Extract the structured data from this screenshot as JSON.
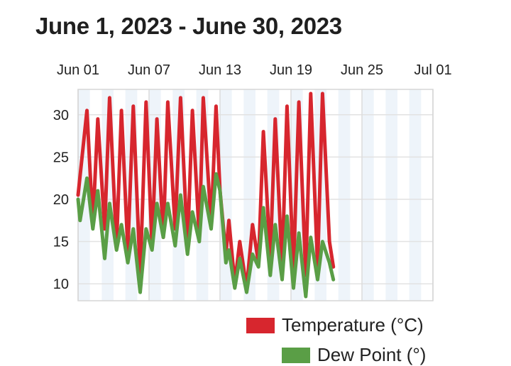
{
  "chart_data": {
    "type": "line",
    "title": "June 1, 2023 - June 30, 2023",
    "x_tick_labels": [
      "Jun 01",
      "Jun 07",
      "Jun 13",
      "Jun 19",
      "Jun 25",
      "Jul 01"
    ],
    "x_range": [
      "2023-06-01",
      "2023-07-01"
    ],
    "ylim": [
      8,
      33
    ],
    "y_ticks": [
      10,
      15,
      20,
      25,
      30
    ],
    "grid": true,
    "legend_position": "bottom-right",
    "series": [
      {
        "name": "Temperature (°C)",
        "color": "#d7262e",
        "points": [
          [
            "2023-06-01",
            20.5
          ],
          [
            "2023-06-01T18:00",
            30.5
          ],
          [
            "2023-06-02T06:00",
            17.0
          ],
          [
            "2023-06-02T16:00",
            29.5
          ],
          [
            "2023-06-03T06:00",
            16.5
          ],
          [
            "2023-06-03T16:00",
            32.0
          ],
          [
            "2023-06-04T06:00",
            14.5
          ],
          [
            "2023-06-04T16:00",
            30.5
          ],
          [
            "2023-06-05T05:00",
            14.0
          ],
          [
            "2023-06-05T16:00",
            31.0
          ],
          [
            "2023-06-06T06:00",
            11.0
          ],
          [
            "2023-06-06T18:00",
            31.5
          ],
          [
            "2023-06-07T06:00",
            14.5
          ],
          [
            "2023-06-07T16:00",
            29.5
          ],
          [
            "2023-06-08T05:00",
            15.5
          ],
          [
            "2023-06-08T14:00",
            31.5
          ],
          [
            "2023-06-09T05:00",
            16.5
          ],
          [
            "2023-06-09T16:00",
            32.0
          ],
          [
            "2023-06-10T06:00",
            14.5
          ],
          [
            "2023-06-10T16:00",
            30.5
          ],
          [
            "2023-06-11T06:00",
            15.5
          ],
          [
            "2023-06-11T14:00",
            32.0
          ],
          [
            "2023-06-12T06:00",
            17.0
          ],
          [
            "2023-06-12T16:00",
            31.0
          ],
          [
            "2023-06-13T00:00",
            21.0
          ],
          [
            "2023-06-13T12:00",
            13.5
          ],
          [
            "2023-06-13T18:00",
            17.5
          ],
          [
            "2023-06-14T06:00",
            10.0
          ],
          [
            "2023-06-14T16:00",
            15.0
          ],
          [
            "2023-06-15T06:00",
            9.5
          ],
          [
            "2023-06-15T18:00",
            17.0
          ],
          [
            "2023-06-16T06:00",
            12.5
          ],
          [
            "2023-06-16T16:00",
            28.0
          ],
          [
            "2023-06-17T06:00",
            13.0
          ],
          [
            "2023-06-17T16:00",
            29.5
          ],
          [
            "2023-06-18T06:00",
            12.0
          ],
          [
            "2023-06-18T16:00",
            31.0
          ],
          [
            "2023-06-19T05:00",
            11.5
          ],
          [
            "2023-06-19T16:00",
            31.5
          ],
          [
            "2023-06-20T06:00",
            11.0
          ],
          [
            "2023-06-20T16:00",
            32.5
          ],
          [
            "2023-06-21T06:00",
            12.0
          ],
          [
            "2023-06-21T16:00",
            32.5
          ],
          [
            "2023-06-22T06:00",
            15.0
          ],
          [
            "2023-06-22T14:00",
            12.0
          ]
        ]
      },
      {
        "name": "Dew Point (°)",
        "color": "#5a9e46",
        "points": [
          [
            "2023-06-01",
            20.0
          ],
          [
            "2023-06-01T04:00",
            17.5
          ],
          [
            "2023-06-01T18:00",
            22.5
          ],
          [
            "2023-06-02T06:00",
            16.5
          ],
          [
            "2023-06-02T16:00",
            21.0
          ],
          [
            "2023-06-03T06:00",
            13.0
          ],
          [
            "2023-06-03T16:00",
            19.5
          ],
          [
            "2023-06-04T06:00",
            14.0
          ],
          [
            "2023-06-04T16:00",
            17.0
          ],
          [
            "2023-06-05T05:00",
            12.5
          ],
          [
            "2023-06-05T16:00",
            16.5
          ],
          [
            "2023-06-06T06:00",
            9.0
          ],
          [
            "2023-06-06T18:00",
            16.5
          ],
          [
            "2023-06-07T06:00",
            14.0
          ],
          [
            "2023-06-07T16:00",
            19.5
          ],
          [
            "2023-06-08T05:00",
            15.5
          ],
          [
            "2023-06-08T14:00",
            19.5
          ],
          [
            "2023-06-09T05:00",
            14.5
          ],
          [
            "2023-06-09T16:00",
            20.5
          ],
          [
            "2023-06-10T06:00",
            13.5
          ],
          [
            "2023-06-10T16:00",
            18.5
          ],
          [
            "2023-06-11T06:00",
            15.0
          ],
          [
            "2023-06-11T14:00",
            21.5
          ],
          [
            "2023-06-12T06:00",
            16.5
          ],
          [
            "2023-06-12T16:00",
            23.0
          ],
          [
            "2023-06-13T00:00",
            21.0
          ],
          [
            "2023-06-13T12:00",
            12.5
          ],
          [
            "2023-06-13T18:00",
            14.0
          ],
          [
            "2023-06-14T06:00",
            9.5
          ],
          [
            "2023-06-14T16:00",
            13.0
          ],
          [
            "2023-06-15T06:00",
            9.0
          ],
          [
            "2023-06-15T18:00",
            13.5
          ],
          [
            "2023-06-16T06:00",
            12.0
          ],
          [
            "2023-06-16T16:00",
            19.0
          ],
          [
            "2023-06-17T06:00",
            11.0
          ],
          [
            "2023-06-17T16:00",
            17.0
          ],
          [
            "2023-06-18T06:00",
            10.5
          ],
          [
            "2023-06-18T16:00",
            18.0
          ],
          [
            "2023-06-19T05:00",
            9.5
          ],
          [
            "2023-06-19T16:00",
            16.0
          ],
          [
            "2023-06-20T06:00",
            8.5
          ],
          [
            "2023-06-20T16:00",
            15.5
          ],
          [
            "2023-06-21T06:00",
            10.5
          ],
          [
            "2023-06-21T16:00",
            15.0
          ],
          [
            "2023-06-22T06:00",
            12.5
          ],
          [
            "2023-06-22T14:00",
            10.5
          ]
        ]
      }
    ]
  }
}
